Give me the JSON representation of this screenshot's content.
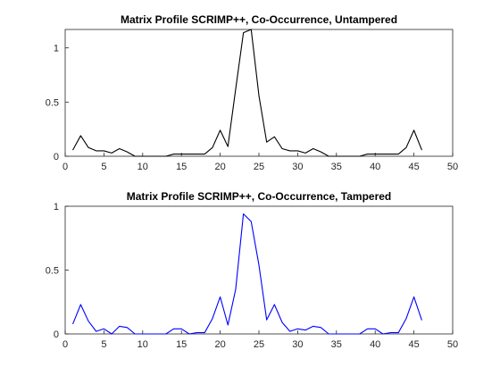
{
  "chart_data": [
    {
      "type": "line",
      "title": "Matrix Profile SCRIMP++, Co-Occurrence, Untampered",
      "xlabel": "",
      "ylabel": "",
      "xlim": [
        0,
        50
      ],
      "ylim": [
        0,
        1.17
      ],
      "xticks": [
        0,
        5,
        10,
        15,
        20,
        25,
        30,
        35,
        40,
        45,
        50
      ],
      "yticks": [
        0,
        0.5,
        1
      ],
      "xtick_labels": [
        "0",
        "5",
        "10",
        "15",
        "20",
        "25",
        "30",
        "35",
        "40",
        "45",
        "50"
      ],
      "ytick_labels": [
        "0",
        "0.5",
        "1"
      ],
      "grid": false,
      "series": [
        {
          "color": "#000000",
          "x": [
            1,
            2,
            3,
            4,
            5,
            6,
            7,
            8,
            9,
            10,
            11,
            12,
            13,
            14,
            15,
            16,
            17,
            18,
            19,
            20,
            21,
            22,
            23,
            24,
            25,
            26,
            27,
            28,
            29,
            30,
            31,
            32,
            33,
            34,
            35,
            36,
            37,
            38,
            39,
            40,
            41,
            42,
            43,
            44,
            45,
            46
          ],
          "y": [
            0.06,
            0.19,
            0.08,
            0.05,
            0.05,
            0.03,
            0.07,
            0.04,
            0,
            0,
            0,
            0,
            0,
            0.02,
            0.02,
            0.02,
            0.02,
            0.02,
            0.08,
            0.24,
            0.09,
            0.62,
            1.14,
            1.17,
            0.56,
            0.13,
            0.18,
            0.07,
            0.05,
            0.05,
            0.03,
            0.07,
            0.04,
            0,
            0,
            0,
            0,
            0,
            0.02,
            0.02,
            0.02,
            0.02,
            0.02,
            0.08,
            0.24,
            0.06
          ]
        }
      ]
    },
    {
      "type": "line",
      "title": "Matrix Profile SCRIMP++, Co-Occurrence, Tampered",
      "xlabel": "",
      "ylabel": "",
      "xlim": [
        0,
        50
      ],
      "ylim": [
        0,
        1
      ],
      "xticks": [
        0,
        5,
        10,
        15,
        20,
        25,
        30,
        35,
        40,
        45,
        50
      ],
      "yticks": [
        0,
        0.5,
        1
      ],
      "xtick_labels": [
        "0",
        "5",
        "10",
        "15",
        "20",
        "25",
        "30",
        "35",
        "40",
        "45",
        "50"
      ],
      "ytick_labels": [
        "0",
        "0.5",
        "1"
      ],
      "grid": false,
      "series": [
        {
          "color": "#0000ff",
          "x": [
            1,
            2,
            3,
            4,
            5,
            6,
            7,
            8,
            9,
            10,
            11,
            12,
            13,
            14,
            15,
            16,
            17,
            18,
            19,
            20,
            21,
            22,
            23,
            24,
            25,
            26,
            27,
            28,
            29,
            30,
            31,
            32,
            33,
            34,
            35,
            36,
            37,
            38,
            39,
            40,
            41,
            42,
            43,
            44,
            45,
            46
          ],
          "y": [
            0.08,
            0.23,
            0.1,
            0.02,
            0.04,
            0,
            0.06,
            0.05,
            0,
            0,
            0,
            0,
            0,
            0.04,
            0.04,
            0,
            0.01,
            0.01,
            0.12,
            0.29,
            0.07,
            0.35,
            0.94,
            0.88,
            0.54,
            0.11,
            0.23,
            0.09,
            0.02,
            0.04,
            0.03,
            0.06,
            0.05,
            0,
            0,
            0,
            0,
            0,
            0.04,
            0.04,
            0,
            0.01,
            0.01,
            0.12,
            0.29,
            0.11
          ]
        }
      ]
    }
  ]
}
